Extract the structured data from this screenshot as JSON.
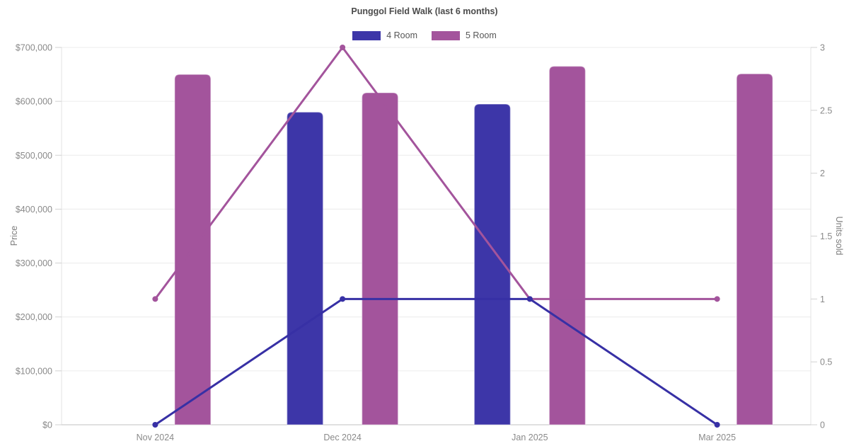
{
  "chart_data": {
    "type": "bar+line",
    "title": "Punggol Field Walk (last 6 months)",
    "categories": [
      "Nov 2024",
      "Dec 2024",
      "Jan 2025",
      "Mar 2025"
    ],
    "legend": {
      "position": "top",
      "items": [
        {
          "label": "4 Room",
          "color": "#3D36A8"
        },
        {
          "label": "5 Room",
          "color": "#A3549C"
        }
      ]
    },
    "bar_series": [
      {
        "name": "4 Room",
        "color": "#3D36A8",
        "axis": "left",
        "values": [
          null,
          580000,
          595000,
          null
        ]
      },
      {
        "name": "5 Room",
        "color": "#A3549C",
        "axis": "left",
        "values": [
          650000,
          616000,
          665000,
          651000
        ]
      }
    ],
    "line_series": [
      {
        "name": "4 Room",
        "color": "#3730A5",
        "axis": "right",
        "values": [
          0,
          1,
          1,
          0
        ]
      },
      {
        "name": "5 Room",
        "color": "#A3549C",
        "axis": "right",
        "values": [
          1,
          3,
          1,
          1
        ]
      }
    ],
    "left_axis": {
      "label": "Price",
      "min": 0,
      "max": 700000,
      "tick_step": 100000,
      "tick_labels": [
        "$0",
        "$100,000",
        "$200,000",
        "$300,000",
        "$400,000",
        "$500,000",
        "$600,000",
        "$700,000"
      ]
    },
    "right_axis": {
      "label": "Units sold",
      "min": 0,
      "max": 3,
      "tick_step": 0.5,
      "tick_labels": [
        "0",
        "0.5",
        "1",
        "1.5",
        "2",
        "2.5",
        "3"
      ]
    },
    "grid": true
  },
  "style": {
    "background": "#ffffff",
    "grid_color": "#ececec",
    "axis_border_color": "#e3e3e3",
    "bottom_axis_color": "#c2c2c2",
    "tick_mark_color": "#d2d2d2",
    "tick_text_color": "#8a8a8a",
    "axis_title_color": "#7d7d7d",
    "title_color": "#4b4b4b",
    "legend_text_color": "#565656"
  }
}
